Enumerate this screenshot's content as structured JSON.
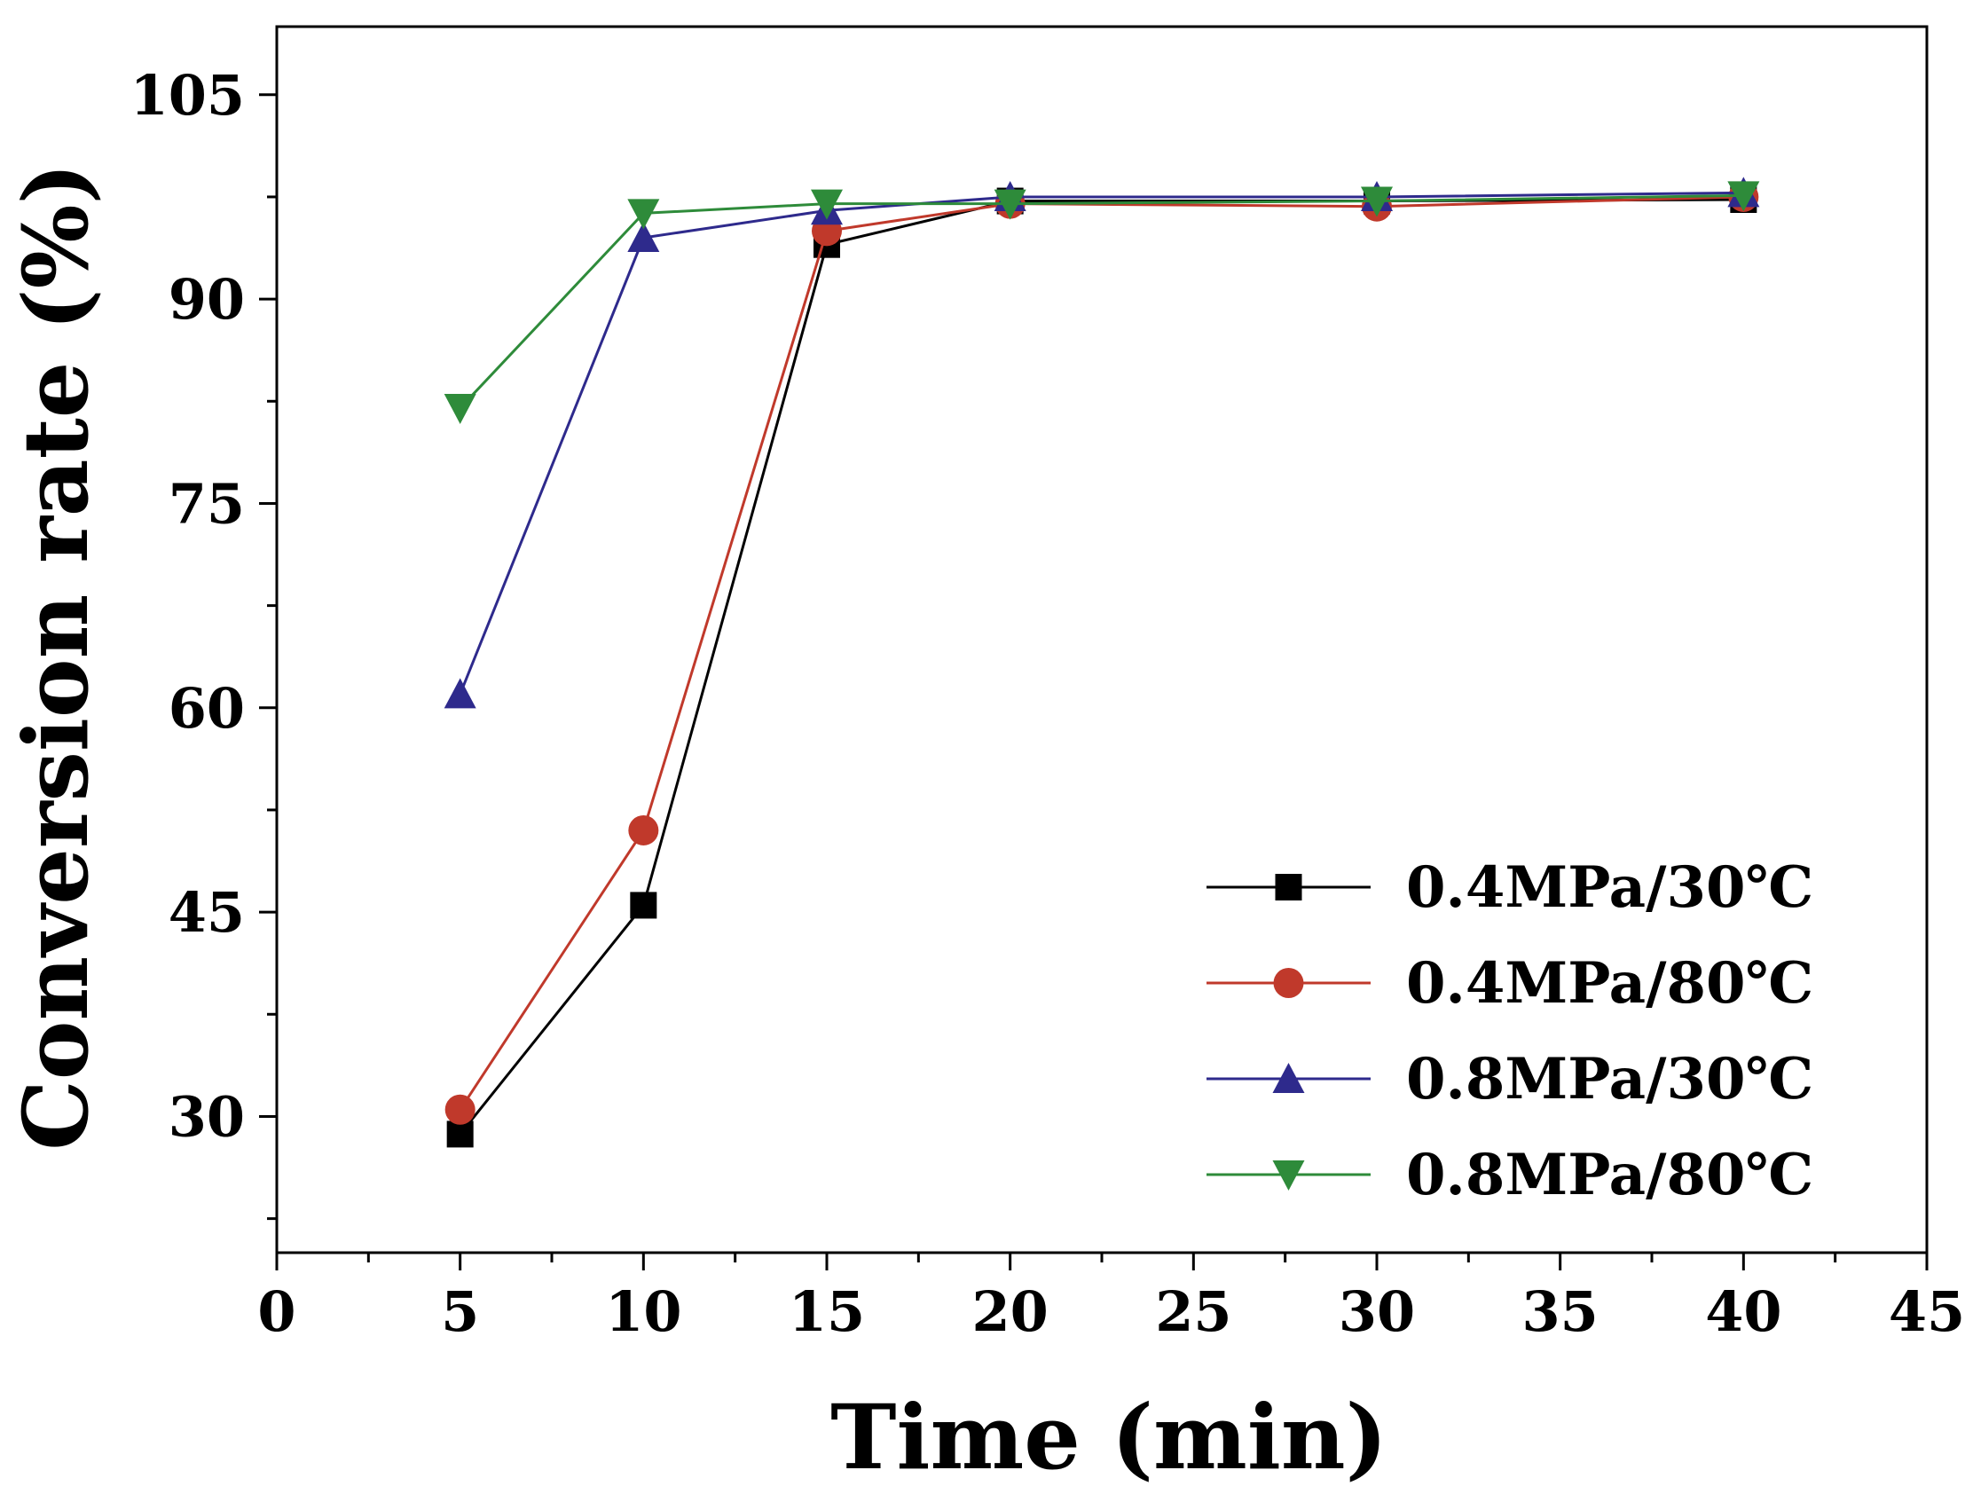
{
  "chart_data": {
    "type": "line",
    "title": "",
    "xlabel": "Time (min)",
    "ylabel": "Conversion rate (%)",
    "xlim": [
      0,
      45
    ],
    "ylim": [
      20,
      110
    ],
    "xticks": [
      0,
      5,
      10,
      15,
      20,
      25,
      30,
      35,
      40,
      45
    ],
    "xtick_labels": [
      "0",
      "5",
      "10",
      "15",
      "20",
      "25",
      "30",
      "35",
      "40",
      "45"
    ],
    "yticks": [
      30,
      45,
      60,
      75,
      90,
      105
    ],
    "ytick_labels": [
      "30",
      "45",
      "60",
      "75",
      "90",
      "105"
    ],
    "x": [
      5,
      10,
      15,
      20,
      30,
      40
    ],
    "legend_position": "bottom-right",
    "grid": false,
    "series": [
      {
        "name": "0.4MPa/30℃",
        "color": "#000000",
        "marker": "square",
        "values": [
          28.7,
          45.5,
          94.0,
          97.2,
          97.2,
          97.3
        ]
      },
      {
        "name": "0.4MPa/80℃",
        "color": "#c0392b",
        "marker": "circle",
        "values": [
          30.5,
          51.0,
          95.0,
          97.0,
          96.8,
          97.5
        ]
      },
      {
        "name": "0.8MPa/30℃",
        "color": "#2e2a8c",
        "marker": "triangle-up",
        "values": [
          61.0,
          94.5,
          96.5,
          97.5,
          97.5,
          97.8
        ]
      },
      {
        "name": "0.8MPa/80℃",
        "color": "#2e8b3a",
        "marker": "triangle-down",
        "values": [
          82.0,
          96.3,
          97.0,
          97.0,
          97.2,
          97.6
        ]
      }
    ]
  }
}
